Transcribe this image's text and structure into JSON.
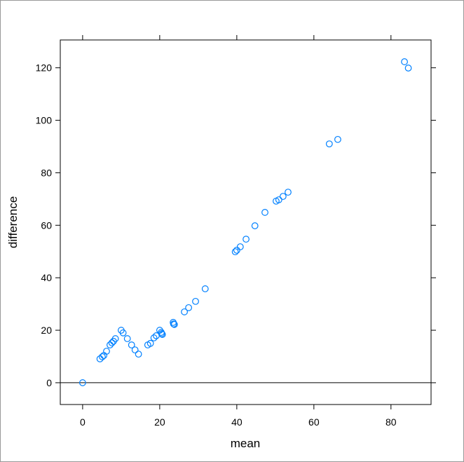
{
  "chart_data": {
    "type": "scatter",
    "xlabel": "mean",
    "ylabel": "difference",
    "xlim": [
      -5.8,
      90.4
    ],
    "ylim": [
      -8.3,
      130.6
    ],
    "xticks": [
      0,
      20,
      40,
      60,
      80
    ],
    "yticks": [
      0,
      20,
      40,
      60,
      80,
      100,
      120
    ],
    "reference_line": 0,
    "color": "#0080ff",
    "x": [
      0,
      4.5,
      5.1,
      5.5,
      6.2,
      7.1,
      7.6,
      8,
      8.5,
      10,
      10.5,
      11.6,
      12.7,
      13.6,
      14.5,
      16.9,
      17.6,
      18.5,
      19.1,
      20,
      20.4,
      20.5,
      20.7,
      23.5,
      23.6,
      23.8,
      26.4,
      27.5,
      29.3,
      31.8,
      39.6,
      40,
      40.9,
      42.4,
      44.7,
      47.3,
      50.2,
      50.9,
      52,
      53.3,
      64,
      66.2,
      83.5,
      84.5
    ],
    "y": [
      0,
      9.1,
      9.9,
      10.4,
      12,
      14.4,
      15.2,
      15.8,
      16.8,
      20,
      19,
      16.8,
      14.4,
      12.5,
      10.9,
      14.4,
      15,
      17.1,
      17.9,
      20,
      19.2,
      18.7,
      18.4,
      23,
      22.4,
      22.2,
      27,
      28.6,
      31,
      35.8,
      49.9,
      50.5,
      51.8,
      54.7,
      59.8,
      64.9,
      69.2,
      69.7,
      71,
      72.6,
      91,
      92.7,
      122.3,
      119.9
    ]
  }
}
